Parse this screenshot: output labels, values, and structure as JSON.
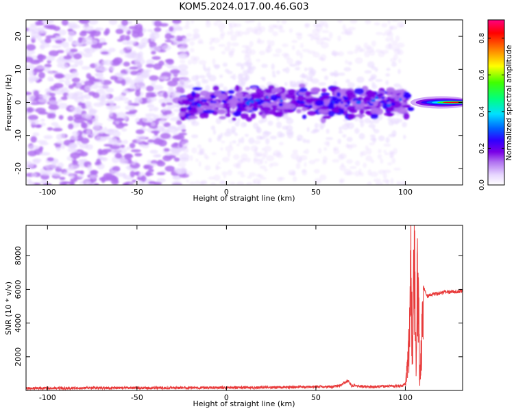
{
  "title": "KOM5.2024.017.00.46.G03",
  "chart_data": [
    {
      "type": "heatmap",
      "xlabel": "Height of straight line (km)",
      "ylabel": "Frequency (Hz)",
      "xlim": [
        -112,
        132
      ],
      "ylim": [
        -25,
        25
      ],
      "xticks": [
        -100,
        -50,
        0,
        50,
        100
      ],
      "yticks": [
        -20,
        -10,
        0,
        10,
        20
      ],
      "colorbar": {
        "label": "Normalized spectral amplitude",
        "range": [
          0,
          0.9
        ],
        "ticks": [
          0.0,
          0.2,
          0.4,
          0.6,
          0.8
        ],
        "colormap": [
          "#ffffff",
          "#e8d8ff",
          "#b070f0",
          "#7a00e6",
          "#3000ff",
          "#0060ff",
          "#00e0ff",
          "#00ff80",
          "#40ff00",
          "#ffff00",
          "#ff8000",
          "#ff0000",
          "#ff0080"
        ]
      },
      "regions": [
        {
          "x_range": [
            -112,
            -25
          ],
          "freq_spread": 25,
          "intensity": 0.15,
          "note": "diffuse noise"
        },
        {
          "x_range": [
            -25,
            100
          ],
          "freq_center": 0,
          "freq_spread": 6,
          "intensity": 0.2
        },
        {
          "x_range": [
            102,
            132
          ],
          "freq_center": 0,
          "freq_spread": 1.5,
          "intensity": 0.7
        }
      ]
    },
    {
      "type": "line",
      "xlabel": "Height of straight line (km)",
      "ylabel": "SNR (10 * v/v)",
      "xlim": [
        -112,
        132
      ],
      "ylim": [
        0,
        9800
      ],
      "xticks": [
        -100,
        -50,
        0,
        50,
        100
      ],
      "yticks": [
        2000,
        4000,
        6000,
        8000
      ],
      "color": "#e83a3a",
      "series": [
        {
          "x": [
            -112,
            -100,
            -80,
            -60,
            -40,
            -20,
            0,
            20,
            40,
            60,
            64,
            66,
            68,
            70,
            80,
            90,
            98,
            100,
            101,
            102,
            103,
            104,
            105,
            106,
            107,
            108,
            109,
            110,
            112,
            115,
            120,
            125,
            132
          ],
          "y": [
            120,
            130,
            140,
            150,
            150,
            160,
            170,
            180,
            200,
            230,
            300,
            450,
            600,
            280,
            220,
            240,
            260,
            400,
            1500,
            3000,
            8900,
            2000,
            9200,
            1200,
            9900,
            500,
            3000,
            6200,
            5600,
            5700,
            5800,
            5850,
            5900
          ]
        }
      ]
    }
  ]
}
